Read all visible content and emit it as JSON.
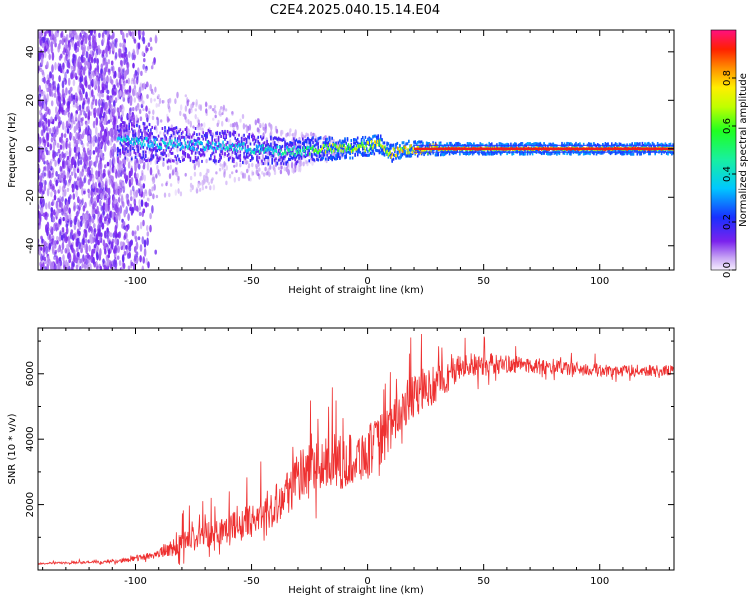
{
  "title": "C2E4.2025.040.15.14.E04",
  "colors": {
    "snr_line": "#ee3030",
    "ridge_red": "#ee2020",
    "axis": "#000000",
    "background": "#ffffff"
  },
  "chart_data": [
    {
      "type": "heatmap",
      "title": "C2E4.2025.040.15.14.E04",
      "xlabel": "Height of straight line (km)",
      "ylabel": "Frequency (Hz)",
      "xlim": [
        -142,
        132
      ],
      "ylim": [
        -50,
        49
      ],
      "x_ticks": [
        -100,
        -50,
        0,
        50,
        100
      ],
      "y_ticks": [
        -40,
        -20,
        0,
        20,
        40
      ],
      "colorbar": {
        "label": "Normalized spectral amplitude",
        "ticks": [
          0.0,
          0.2,
          0.4,
          0.6,
          0.8
        ],
        "range": [
          0,
          1
        ],
        "colormap": "rainbow (white/violet → blue → cyan → green → yellow → orange → red → magenta)"
      },
      "ridge": {
        "description": "narrow high-amplitude band near 0 Hz",
        "x_start": -108,
        "x_end": 132,
        "frequency_hz": [
          [
            -108,
            5
          ],
          [
            -100,
            3
          ],
          [
            -90,
            2
          ],
          [
            -80,
            2
          ],
          [
            -70,
            1
          ],
          [
            -60,
            1
          ],
          [
            -50,
            0
          ],
          [
            -40,
            -1
          ],
          [
            -30,
            -1
          ],
          [
            -20,
            0
          ],
          [
            -10,
            0
          ],
          [
            0,
            1
          ],
          [
            5,
            2
          ],
          [
            10,
            -2
          ],
          [
            15,
            0
          ],
          [
            30,
            0
          ],
          [
            50,
            0
          ],
          [
            80,
            0
          ],
          [
            132,
            0
          ]
        ],
        "amplitude": [
          [
            -108,
            0.45
          ],
          [
            -80,
            0.4
          ],
          [
            -50,
            0.42
          ],
          [
            -30,
            0.5
          ],
          [
            -20,
            0.7
          ],
          [
            0,
            0.78
          ],
          [
            20,
            0.85
          ],
          [
            40,
            0.9
          ],
          [
            60,
            0.92
          ],
          [
            132,
            0.9
          ]
        ]
      },
      "noise_region": {
        "description": "scattered broadband violet noise",
        "x_range": [
          -142,
          -95
        ],
        "frequency_range": [
          -50,
          49
        ],
        "amplitude": 0.1
      }
    },
    {
      "type": "line",
      "xlabel": "Height of straight line (km)",
      "ylabel": "SNR (10 * v/v)",
      "xlim": [
        -142,
        132
      ],
      "ylim": [
        0,
        7400
      ],
      "x_ticks": [
        -100,
        -50,
        0,
        50,
        100
      ],
      "y_ticks": [
        2000,
        4000,
        6000
      ],
      "trend": [
        [
          -142,
          200
        ],
        [
          -110,
          250
        ],
        [
          -100,
          350
        ],
        [
          -90,
          500
        ],
        [
          -80,
          800
        ],
        [
          -70,
          1100
        ],
        [
          -60,
          1300
        ],
        [
          -50,
          1500
        ],
        [
          -40,
          2000
        ],
        [
          -30,
          2800
        ],
        [
          -20,
          3200
        ],
        [
          -10,
          3300
        ],
        [
          0,
          3600
        ],
        [
          10,
          4300
        ],
        [
          15,
          5000
        ],
        [
          20,
          5300
        ],
        [
          30,
          5700
        ],
        [
          40,
          6200
        ],
        [
          50,
          6300
        ],
        [
          60,
          6300
        ],
        [
          80,
          6200
        ],
        [
          100,
          6100
        ],
        [
          132,
          6100
        ]
      ],
      "noise_amplitude": [
        [
          -142,
          50
        ],
        [
          -110,
          80
        ],
        [
          -90,
          250
        ],
        [
          -80,
          700
        ],
        [
          -50,
          900
        ],
        [
          -30,
          1500
        ],
        [
          0,
          1500
        ],
        [
          20,
          1200
        ],
        [
          40,
          800
        ],
        [
          60,
          500
        ],
        [
          100,
          350
        ],
        [
          132,
          300
        ]
      ]
    }
  ]
}
